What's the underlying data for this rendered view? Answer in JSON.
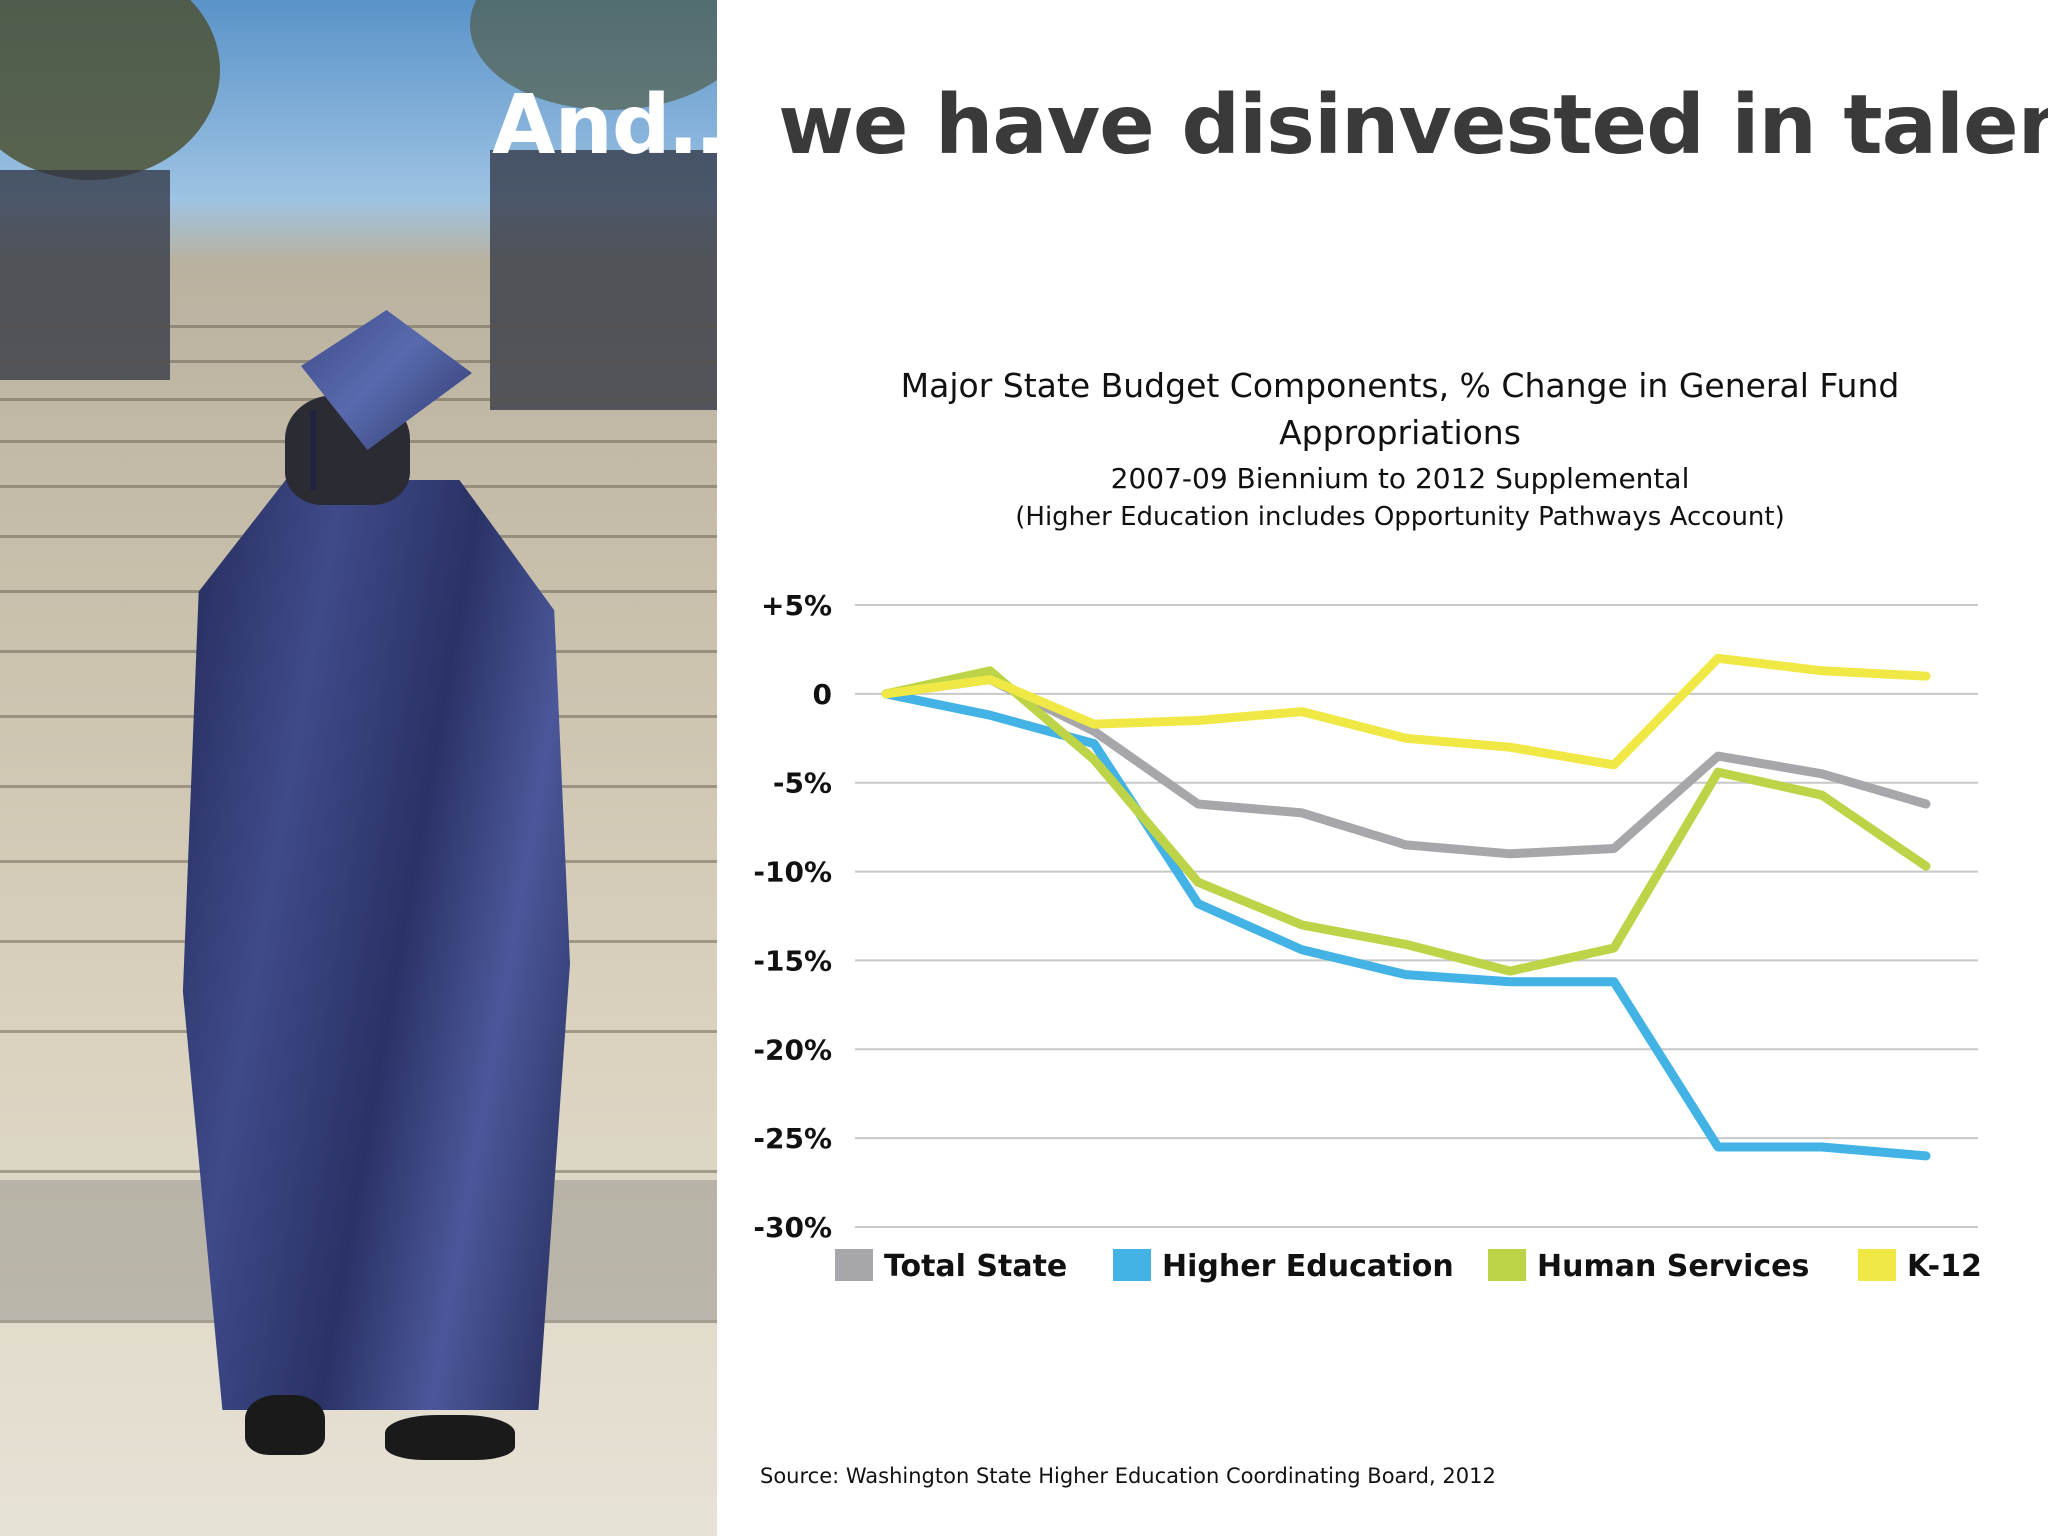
{
  "slide": {
    "headline_white": "And…",
    "headline_dark": " we have disinvested in talent.",
    "source": "Source: Washington State Higher Education Coordinating Board, 2012"
  },
  "chart_data": {
    "type": "line",
    "title": "Major State Budget Components, % Change in General Fund Appropriations",
    "subtitle": "2007-09 Biennium to 2012 Supplemental",
    "note": "(Higher Education includes Opportunity Pathways Account)",
    "ylim": [
      -30,
      5
    ],
    "yticks": [
      {
        "value": 5,
        "label": "+5%"
      },
      {
        "value": 0,
        "label": "0"
      },
      {
        "value": -5,
        "label": "-5%"
      },
      {
        "value": -10,
        "label": "-10%"
      },
      {
        "value": -15,
        "label": "-15%"
      },
      {
        "value": -20,
        "label": "-20%"
      },
      {
        "value": -25,
        "label": "-25%"
      },
      {
        "value": -30,
        "label": "-30%"
      }
    ],
    "grid": true,
    "legend_position": "bottom",
    "x_count": 11,
    "series": [
      {
        "name": "Total State",
        "color": "#a7a6aa",
        "values": [
          0,
          0.8,
          -2.1,
          -6.2,
          -6.7,
          -8.5,
          -9.0,
          -8.7,
          -3.5,
          -4.5,
          -6.2
        ]
      },
      {
        "name": "Higher Education",
        "color": "#43b3e6",
        "values": [
          0,
          -1.2,
          -2.8,
          -11.8,
          -14.4,
          -15.8,
          -16.2,
          -16.2,
          -25.5,
          -25.5,
          -26.0
        ]
      },
      {
        "name": "Human Services",
        "color": "#bdd448",
        "values": [
          0,
          1.3,
          -3.7,
          -10.6,
          -13.0,
          -14.1,
          -15.6,
          -14.3,
          -4.4,
          -5.7,
          -9.7
        ]
      },
      {
        "name": "K-12",
        "color": "#efe845",
        "values": [
          0,
          0.8,
          -1.7,
          -1.5,
          -1.0,
          -2.5,
          -3.0,
          -4.0,
          2.0,
          1.3,
          1.0
        ]
      }
    ]
  }
}
